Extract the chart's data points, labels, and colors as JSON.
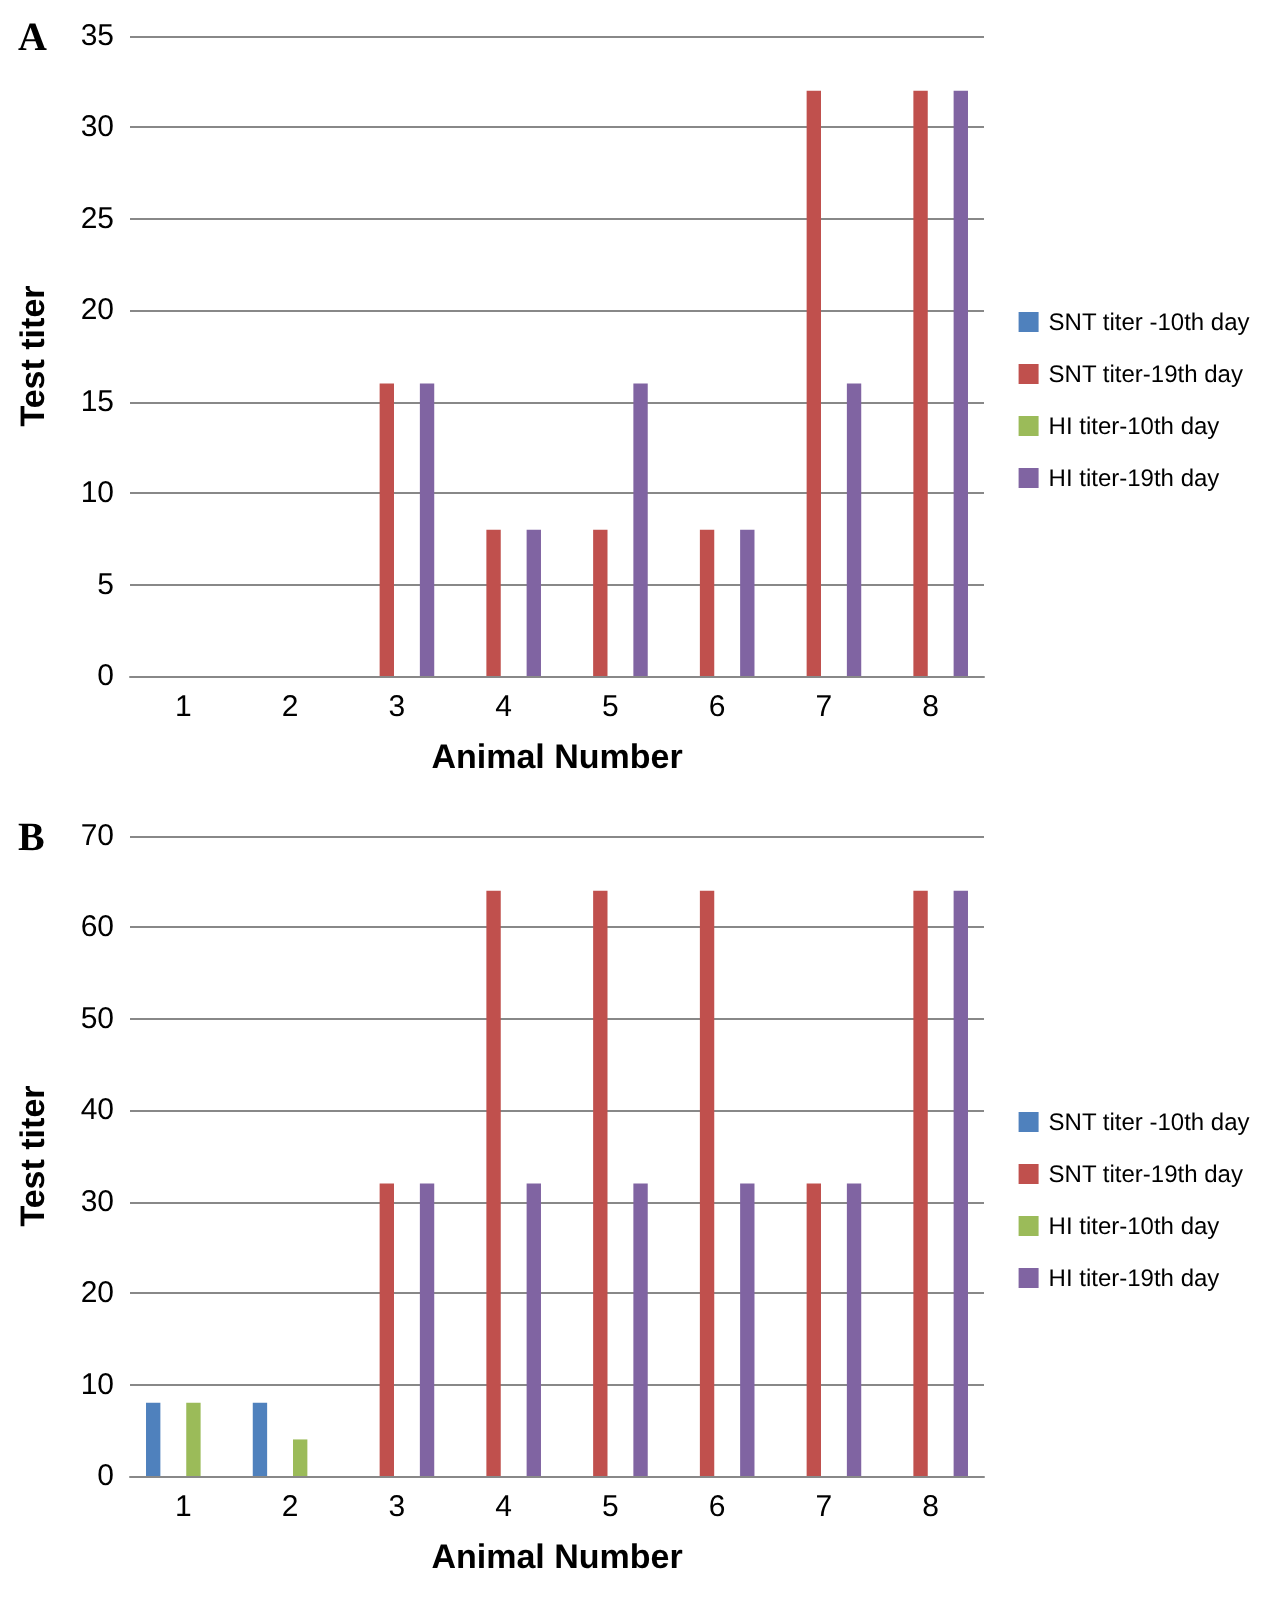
{
  "chart_data": [
    {
      "type": "bar",
      "title": "A",
      "xlabel": "Animal Number",
      "ylabel": "Test titer",
      "categories": [
        "1",
        "2",
        "3",
        "4",
        "5",
        "6",
        "7",
        "8"
      ],
      "series": [
        {
          "name": "SNT titer -10th day",
          "color": "#4f81bd",
          "values": [
            0,
            0,
            0,
            0,
            0,
            0,
            0,
            0
          ]
        },
        {
          "name": "SNT titer-19th day",
          "color": "#c0504d",
          "values": [
            0,
            0,
            16,
            8,
            8,
            8,
            32,
            32
          ]
        },
        {
          "name": "HI titer-10th day",
          "color": "#9bbb59",
          "values": [
            0,
            0,
            0,
            0,
            0,
            0,
            0,
            0
          ]
        },
        {
          "name": "HI titer-19th day",
          "color": "#8064a2",
          "values": [
            0,
            0,
            16,
            8,
            16,
            8,
            16,
            32
          ]
        }
      ],
      "ylim": [
        0,
        35
      ],
      "yticks": [
        0,
        5,
        10,
        15,
        20,
        25,
        30,
        35
      ],
      "grid": "y",
      "legend": "right"
    },
    {
      "type": "bar",
      "title": "B",
      "xlabel": "Animal Number",
      "ylabel": "Test titer",
      "categories": [
        "1",
        "2",
        "3",
        "4",
        "5",
        "6",
        "7",
        "8"
      ],
      "series": [
        {
          "name": "SNT titer -10th day",
          "color": "#4f81bd",
          "values": [
            8,
            8,
            0,
            0,
            0,
            0,
            0,
            0
          ]
        },
        {
          "name": "SNT titer-19th day",
          "color": "#c0504d",
          "values": [
            0,
            0,
            32,
            64,
            64,
            64,
            32,
            64
          ]
        },
        {
          "name": "HI titer-10th day",
          "color": "#9bbb59",
          "values": [
            8,
            4,
            0,
            0,
            0,
            0,
            0,
            0
          ]
        },
        {
          "name": "HI titer-19th day",
          "color": "#8064a2",
          "values": [
            0,
            0,
            32,
            32,
            32,
            32,
            32,
            64
          ]
        }
      ],
      "ylim": [
        0,
        70
      ],
      "yticks": [
        0,
        10,
        20,
        30,
        40,
        50,
        60,
        70
      ],
      "grid": "y",
      "legend": "right"
    }
  ]
}
